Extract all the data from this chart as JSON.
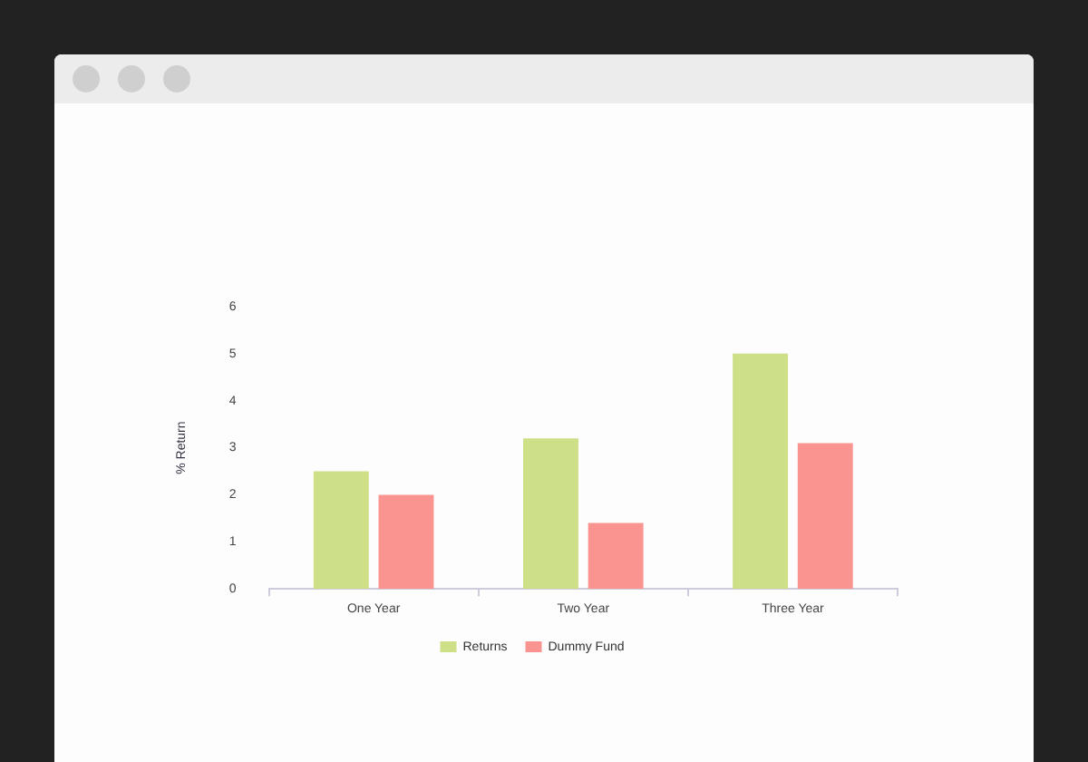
{
  "chart_data": {
    "type": "bar",
    "ylabel": "% Return",
    "categories": [
      "One Year",
      "Two Year",
      "Three Year"
    ],
    "series": [
      {
        "name": "Returns",
        "color": "#cddf87",
        "values": [
          2.5,
          3.2,
          5.0
        ]
      },
      {
        "name": "Dummy Fund",
        "color": "#fa9490",
        "values": [
          2.0,
          1.4,
          3.1
        ]
      }
    ],
    "ylim": [
      0,
      6
    ],
    "yticks": [
      0,
      1,
      2,
      3,
      4,
      5,
      6
    ],
    "grid": false,
    "legend": "bottom"
  }
}
